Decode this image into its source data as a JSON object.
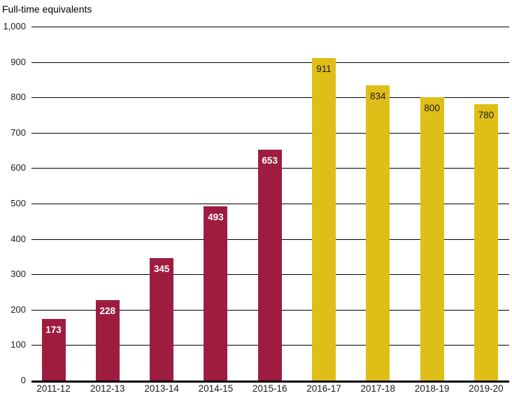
{
  "chart_data": {
    "type": "bar",
    "title": "Full-time equivalents",
    "xlabel": "",
    "ylabel": "Full-time equivalents",
    "categories": [
      "2011-12",
      "2012-13",
      "2013-14",
      "2014-15",
      "2015-16",
      "2016-17",
      "2017-18",
      "2018-19",
      "2019-20"
    ],
    "values": [
      173,
      228,
      345,
      493,
      653,
      911,
      834,
      800,
      780
    ],
    "bar_colors": [
      "#9E1C40",
      "#9E1C40",
      "#9E1C40",
      "#9E1C40",
      "#9E1C40",
      "#E0BE18",
      "#E0BE18",
      "#E0BE18",
      "#E0BE18"
    ],
    "value_label_colors": [
      "#FFFFFF",
      "#FFFFFF",
      "#FFFFFF",
      "#FFFFFF",
      "#FFFFFF",
      "#1A1A1A",
      "#1A1A1A",
      "#1A1A1A",
      "#1A1A1A"
    ],
    "ylim": [
      0,
      1000
    ],
    "ytick_step": 100,
    "ytick_labels": [
      "0",
      "100",
      "200",
      "300",
      "400",
      "500",
      "600",
      "700",
      "800",
      "900",
      "1,000"
    ],
    "grid": "horizontal",
    "legend": "none",
    "colors": {
      "maroon": "#9E1C40",
      "gold": "#E0BE18",
      "axis_text": "#1A1A1A",
      "gridline": "#000000",
      "background": "#FFFFFF"
    }
  }
}
